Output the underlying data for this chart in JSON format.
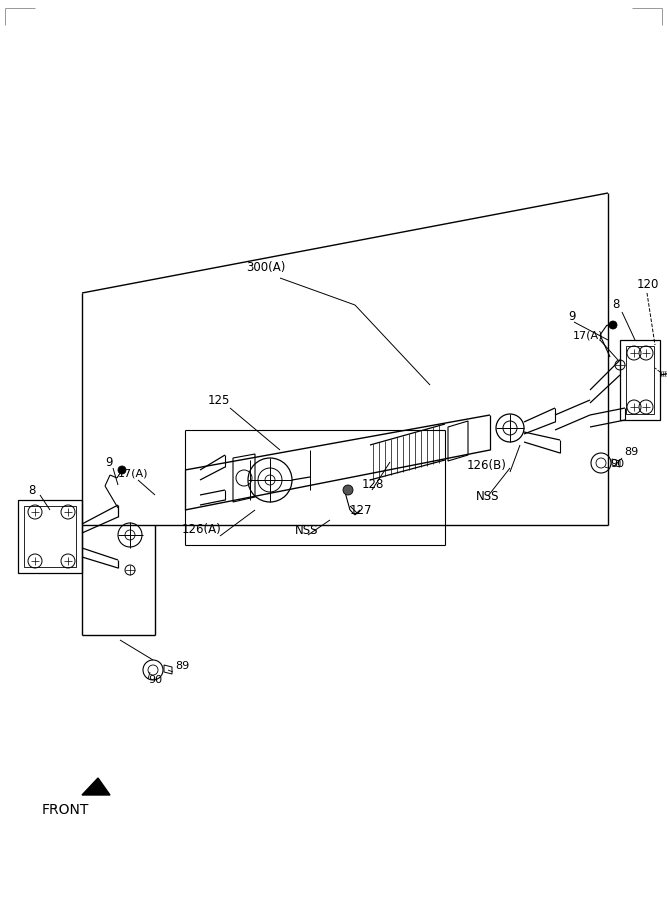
{
  "bg_color": "#ffffff",
  "fig_width": 6.67,
  "fig_height": 9.0,
  "front_label": "FRONT",
  "labels": {
    "300A": "300(A)",
    "125": "125",
    "126A": "126(A)",
    "NSS_left": "NSS",
    "127": "127",
    "128": "128",
    "NSS_right": "NSS",
    "126B": "126(B)",
    "9_left": "9",
    "17A_left": "17(A)",
    "8_left": "8",
    "9_right": "9",
    "17A_right": "17(A)",
    "8_right": "8",
    "120": "120",
    "89_right": "89",
    "90_right": "90",
    "89_bottom": "89",
    "90_bottom": "90"
  }
}
